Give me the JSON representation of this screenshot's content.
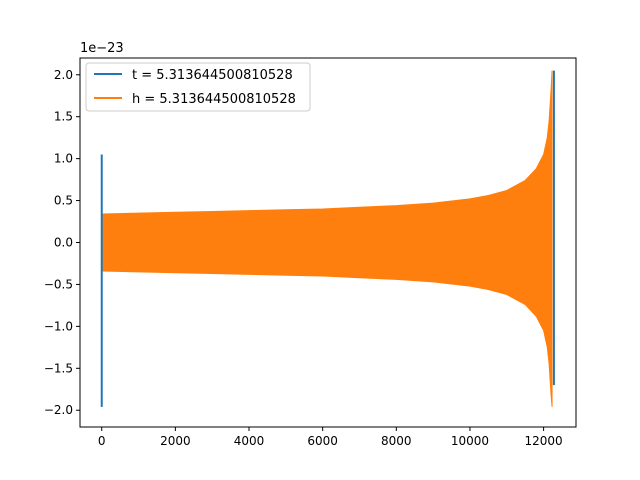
{
  "chart_data": {
    "type": "line",
    "title": "",
    "xlabel": "",
    "ylabel": "",
    "y_offset_label": "1e−23",
    "xlim": [
      -590,
      12880
    ],
    "ylim": [
      -2.2,
      2.2
    ],
    "x_ticks": [
      0,
      2000,
      4000,
      6000,
      8000,
      10000,
      12000
    ],
    "x_tick_labels": [
      "0",
      "2000",
      "4000",
      "6000",
      "8000",
      "10000",
      "12000"
    ],
    "y_ticks": [
      -2.0,
      -1.5,
      -1.0,
      -0.5,
      0.0,
      0.5,
      1.0,
      1.5,
      2.0
    ],
    "y_tick_labels": [
      "−2.0",
      "−1.5",
      "−1.0",
      "−0.5",
      "0.0",
      "0.5",
      "1.0",
      "1.5",
      "2.0"
    ],
    "grid": false,
    "legend_position": "top-left",
    "series": [
      {
        "name": "t = 5.313644500810528",
        "color": "#1f77b4",
        "segments": [
          {
            "x": [
              0,
              0
            ],
            "y": [
              -1.96,
              1.05
            ]
          },
          {
            "x": [
              12280,
              12280
            ],
            "y": [
              -1.7,
              2.05
            ]
          }
        ]
      },
      {
        "name": "h = 5.313644500810528",
        "color": "#ff7f0e",
        "envelope": {
          "x": [
            0,
            1000,
            2000,
            3000,
            4000,
            5000,
            6000,
            7000,
            8000,
            9000,
            10000,
            10500,
            11000,
            11500,
            11800,
            12000,
            12100,
            12150,
            12200,
            12230
          ],
          "upper": [
            0.34,
            0.35,
            0.36,
            0.37,
            0.38,
            0.39,
            0.4,
            0.42,
            0.44,
            0.47,
            0.52,
            0.56,
            0.62,
            0.74,
            0.88,
            1.05,
            1.25,
            1.45,
            1.8,
            2.05
          ],
          "lower": [
            -0.34,
            -0.35,
            -0.36,
            -0.37,
            -0.38,
            -0.39,
            -0.4,
            -0.42,
            -0.44,
            -0.47,
            -0.52,
            -0.56,
            -0.62,
            -0.74,
            -0.88,
            -1.05,
            -1.25,
            -1.45,
            -1.8,
            -1.96
          ]
        }
      }
    ]
  }
}
